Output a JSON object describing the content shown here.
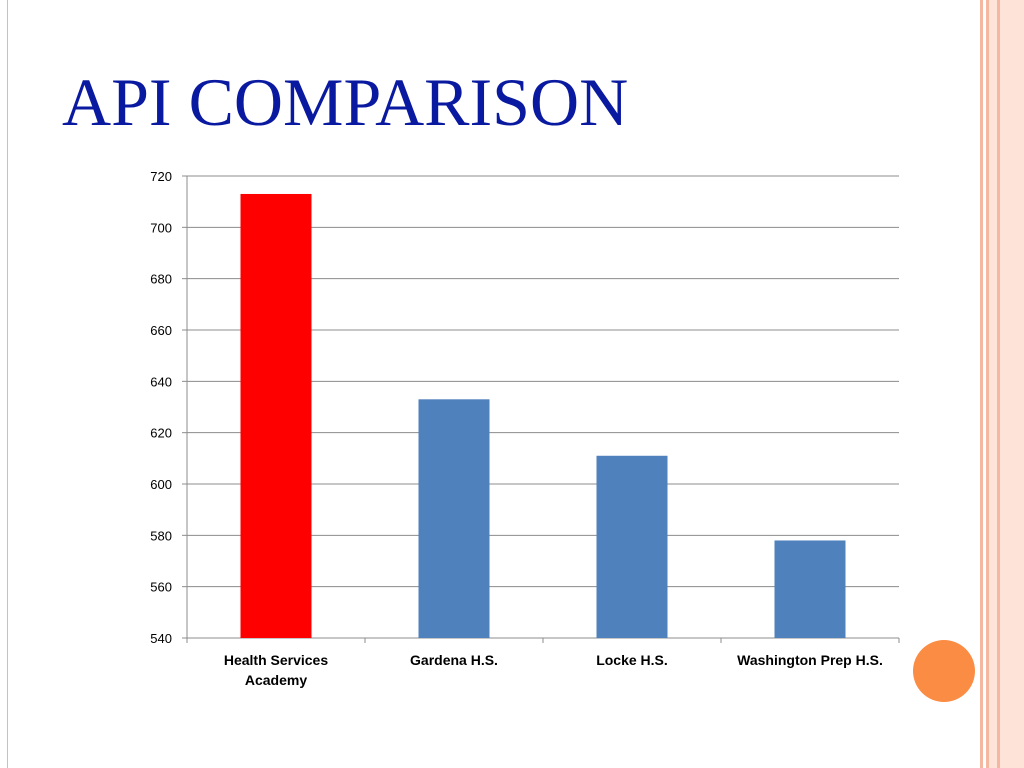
{
  "title": "API COMPARISON",
  "colors": {
    "title": "#0a1aa0",
    "highlight_bar": "#ff0000",
    "bar": "#4f81bd",
    "gridline": "#8c8c8c",
    "orb": "#fb8c43",
    "frame": "#f4b7a0"
  },
  "chart_data": {
    "type": "bar",
    "title": "",
    "xlabel": "",
    "ylabel": "",
    "categories": [
      "Health Services Academy",
      "Gardena H.S.",
      "Locke H.S.",
      "Washington Prep H.S."
    ],
    "category_label_lines": [
      [
        "Health Services",
        "Academy"
      ],
      [
        "Gardena H.S."
      ],
      [
        "Locke H.S."
      ],
      [
        "Washington Prep H.S."
      ]
    ],
    "values": [
      713,
      633,
      611,
      578
    ],
    "bar_colors": [
      "#ff0000",
      "#4f81bd",
      "#4f81bd",
      "#4f81bd"
    ],
    "ylim": [
      540,
      720
    ],
    "yticks": [
      540,
      560,
      580,
      600,
      620,
      640,
      660,
      680,
      700,
      720
    ],
    "grid": true,
    "legend": "none"
  }
}
